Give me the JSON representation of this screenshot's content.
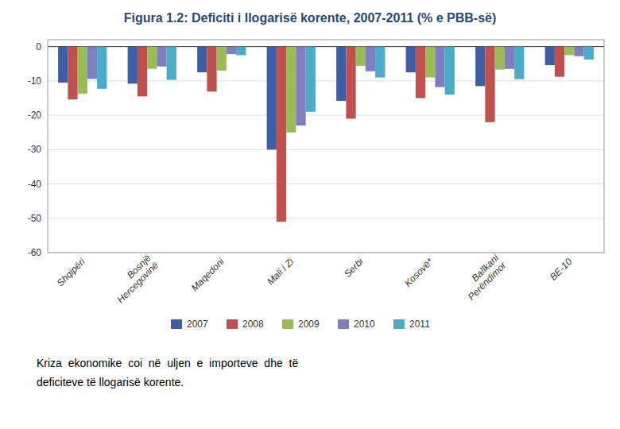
{
  "chart_data": {
    "type": "bar",
    "title": "Figura 1.2: Deficiti i llogarisë korente, 2007-2011 (% e PBB-së)",
    "categories": [
      "Shqipëri",
      "Bosnjë\nHercegovinë",
      "Maqedoni",
      "Mali i Zi",
      "Serbi",
      "Kosovë*",
      "Ballkani\nPerëndimor",
      "BE-10"
    ],
    "series": [
      {
        "name": "2007",
        "color": "#3E5EA8",
        "values": [
          -10.5,
          -10.8,
          -7.5,
          -30.0,
          -15.8,
          -7.5,
          -11.5,
          -5.4
        ]
      },
      {
        "name": "2008",
        "color": "#C0504D",
        "values": [
          -15.4,
          -14.5,
          -13.1,
          -51.0,
          -21.0,
          -15.0,
          -22.0,
          -8.8
        ]
      },
      {
        "name": "2009",
        "color": "#9BBB59",
        "values": [
          -13.7,
          -6.5,
          -7.0,
          -25.0,
          -5.6,
          -9.0,
          -6.7,
          -2.5
        ]
      },
      {
        "name": "2010",
        "color": "#7F7FC0",
        "values": [
          -9.4,
          -5.8,
          -2.2,
          -23.0,
          -7.2,
          -11.8,
          -6.5,
          -2.8
        ]
      },
      {
        "name": "2011",
        "color": "#4BACC6",
        "values": [
          -12.3,
          -9.7,
          -2.5,
          -19.0,
          -9.0,
          -14.0,
          -9.5,
          -3.8
        ]
      }
    ],
    "ylim": [
      -60,
      2
    ],
    "yticks": [
      0,
      -10,
      -20,
      -30,
      -40,
      -50,
      -60
    ],
    "grid": true,
    "legend": "bottom",
    "annotations": [
      "Kriza  ekonomike  coi  në  uljen  e  importeve  dhe  të",
      "deficiteve të llogarisë korente."
    ]
  }
}
